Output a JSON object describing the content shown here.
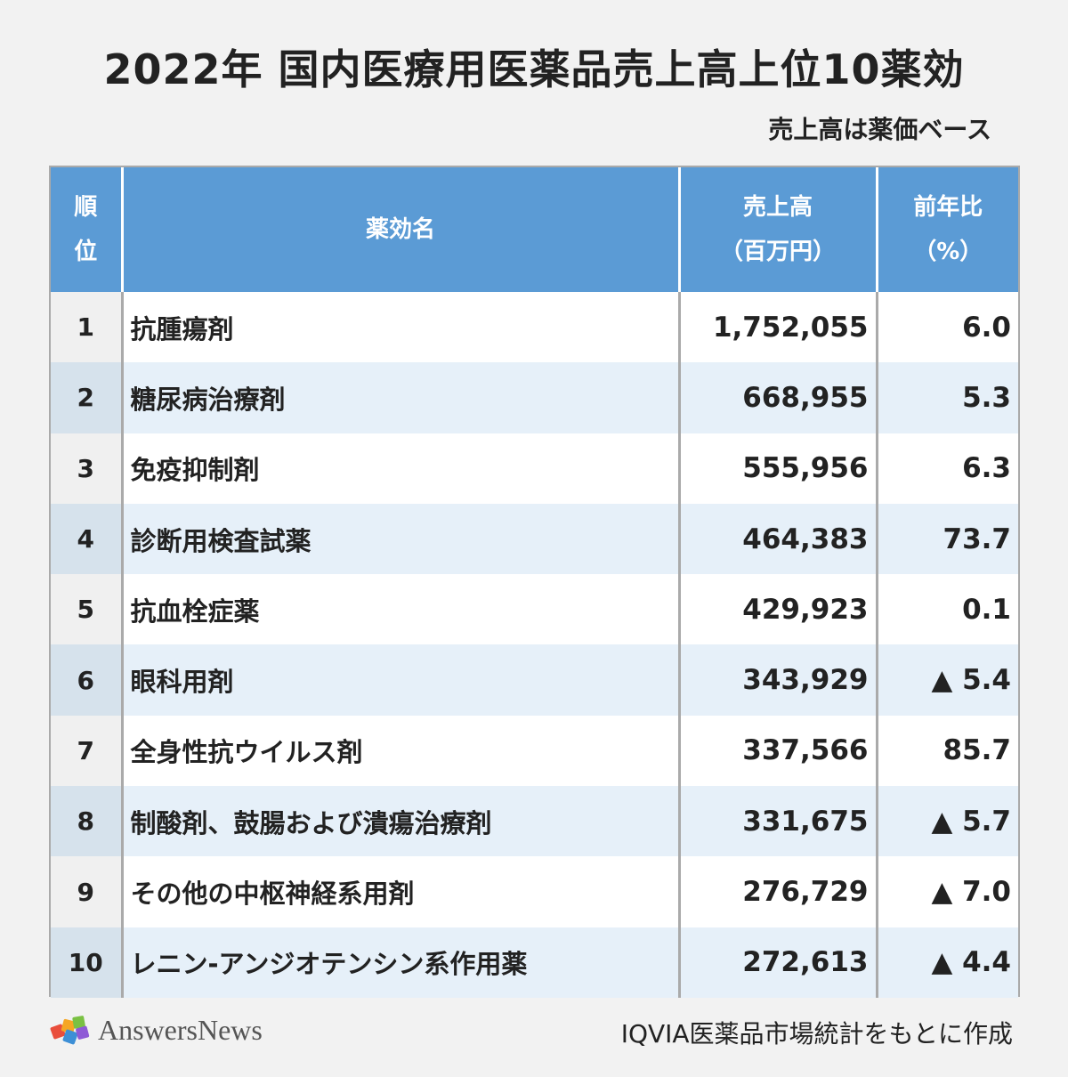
{
  "title": "2022年 国内医療用医薬品売上高上位10薬効",
  "subtitle": "売上高は薬価ベース",
  "table": {
    "headers": {
      "rank_line1": "順",
      "rank_line2": "位",
      "name": "薬効名",
      "sales_line1": "売上高",
      "sales_line2": "（百万円）",
      "change_line1": "前年比",
      "change_line2": "（%）"
    },
    "rows": [
      {
        "rank": "1",
        "name": "抗腫瘍剤",
        "sales": "1,752,055",
        "change": "6.0"
      },
      {
        "rank": "2",
        "name": "糖尿病治療剤",
        "sales": "668,955",
        "change": "5.3"
      },
      {
        "rank": "3",
        "name": "免疫抑制剤",
        "sales": "555,956",
        "change": "6.3"
      },
      {
        "rank": "4",
        "name": "診断用検査試薬",
        "sales": "464,383",
        "change": "73.7"
      },
      {
        "rank": "5",
        "name": "抗血栓症薬",
        "sales": "429,923",
        "change": "0.1"
      },
      {
        "rank": "6",
        "name": "眼科用剤",
        "sales": "343,929",
        "change": "▲ 5.4"
      },
      {
        "rank": "7",
        "name": "全身性抗ウイルス剤",
        "sales": "337,566",
        "change": "85.7"
      },
      {
        "rank": "8",
        "name": "制酸剤、鼓腸および潰瘍治療剤",
        "sales": "331,675",
        "change": "▲ 5.7"
      },
      {
        "rank": "9",
        "name": "その他の中枢神経系用剤",
        "sales": "276,729",
        "change": "▲ 7.0"
      },
      {
        "rank": "10",
        "name": "レニン-アンジオテンシン系作用薬",
        "sales": "272,613",
        "change": "▲ 4.4"
      }
    ]
  },
  "footer": {
    "logo_text": "AnswersNews",
    "source": "IQVIA医薬品市場統計をもとに作成"
  }
}
